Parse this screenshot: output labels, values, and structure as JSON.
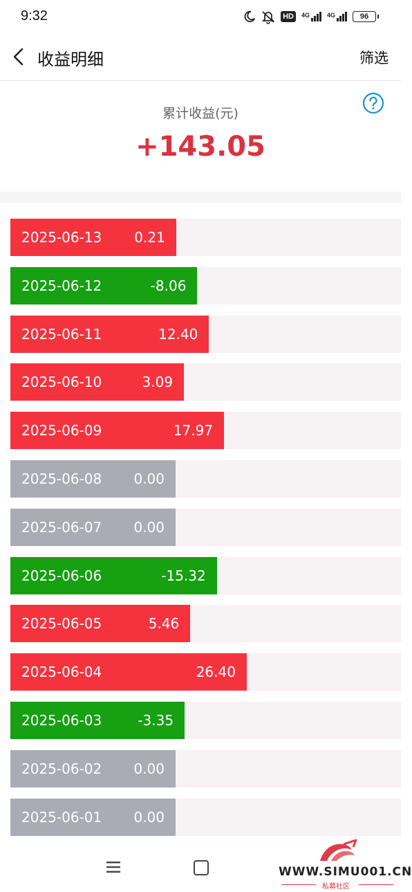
{
  "status": {
    "time": "9:32",
    "hd": "HD",
    "net1": "4G",
    "net2": "4G",
    "battery": "96"
  },
  "nav": {
    "title": "收益明细",
    "filter_label": "筛选"
  },
  "summary": {
    "label": "累计收益(元)",
    "value": "+143.05"
  },
  "colors": {
    "gain": "#f4333f",
    "loss": "#16a012",
    "flat": "#a9abb5",
    "track": "#f7f2f4",
    "accent": "#d9333f"
  },
  "rows": [
    {
      "date": "2025-06-13",
      "value": "0.21",
      "amount": 0.21
    },
    {
      "date": "2025-06-12",
      "value": "-8.06",
      "amount": -8.06
    },
    {
      "date": "2025-06-11",
      "value": "12.40",
      "amount": 12.4
    },
    {
      "date": "2025-06-10",
      "value": "3.09",
      "amount": 3.09
    },
    {
      "date": "2025-06-09",
      "value": "17.97",
      "amount": 17.97
    },
    {
      "date": "2025-06-08",
      "value": "0.00",
      "amount": 0.0
    },
    {
      "date": "2025-06-07",
      "value": "0.00",
      "amount": 0.0
    },
    {
      "date": "2025-06-06",
      "value": "-15.32",
      "amount": -15.32
    },
    {
      "date": "2025-06-05",
      "value": "5.46",
      "amount": 5.46
    },
    {
      "date": "2025-06-04",
      "value": "26.40",
      "amount": 26.4
    },
    {
      "date": "2025-06-03",
      "value": "-3.35",
      "amount": -3.35
    },
    {
      "date": "2025-06-02",
      "value": "0.00",
      "amount": 0.0
    },
    {
      "date": "2025-06-01",
      "value": "0.00",
      "amount": 0.0
    }
  ],
  "watermark": {
    "site": "WWW.SIMU001.CN",
    "sub": "私募社区"
  }
}
